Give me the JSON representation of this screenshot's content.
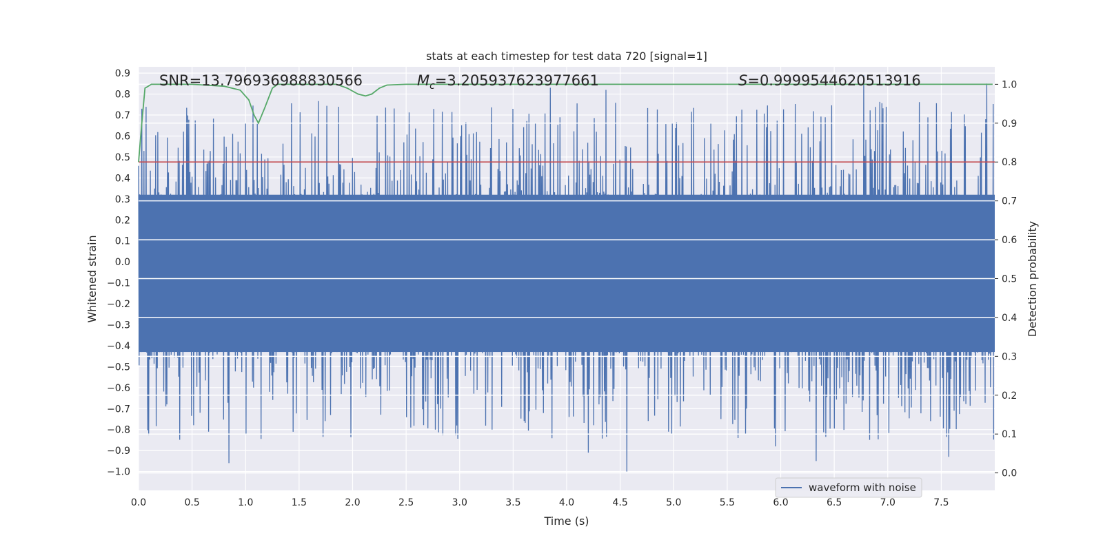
{
  "chart_data": {
    "type": "line",
    "title": "stats at each timestep for test data 720 [signal=1]",
    "xlabel": "Time (s)",
    "ylabel": "Whitened strain",
    "y2label": "Detection probability",
    "xlim": [
      0.0,
      8.0
    ],
    "ylim": [
      -1.09,
      0.93
    ],
    "y2lim": [
      -0.045,
      1.045
    ],
    "x_ticks": [
      0.0,
      0.5,
      1.0,
      1.5,
      2.0,
      2.5,
      3.0,
      3.5,
      4.0,
      4.5,
      5.0,
      5.5,
      6.0,
      6.5,
      7.0,
      7.5
    ],
    "x_tick_labels": [
      "0.0",
      "0.5",
      "1.0",
      "1.5",
      "2.0",
      "2.5",
      "3.0",
      "3.5",
      "4.0",
      "4.5",
      "5.0",
      "5.5",
      "6.0",
      "6.5",
      "7.0",
      "7.5"
    ],
    "y_ticks": [
      0.9,
      0.8,
      0.7,
      0.6,
      0.5,
      0.4,
      0.3,
      0.2,
      0.1,
      0.0,
      -0.1,
      -0.2,
      -0.3,
      -0.4,
      -0.5,
      -0.6,
      -0.7,
      -0.8,
      -0.9,
      -1.0
    ],
    "y_tick_labels": [
      "0.9",
      "0.8",
      "0.7",
      "0.6",
      "0.5",
      "0.4",
      "0.3",
      "0.2",
      "0.1",
      "0.0",
      "−0.1",
      "−0.2",
      "−0.3",
      "−0.4",
      "−0.5",
      "−0.6",
      "−0.7",
      "−0.8",
      "−0.9",
      "−1.0"
    ],
    "y2_ticks": [
      1.0,
      0.9,
      0.8,
      0.7,
      0.6,
      0.5,
      0.4,
      0.3,
      0.2,
      0.1,
      0.0
    ],
    "y2_tick_labels": [
      "1.0",
      "0.9",
      "0.8",
      "0.7",
      "0.6",
      "0.5",
      "0.4",
      "0.3",
      "0.2",
      "0.1",
      "0.0"
    ],
    "grid": true,
    "legend_position": "lower-right",
    "annotations": {
      "snr": "SNR=13.796936988830566",
      "mc_symbol": "M",
      "mc_subscript": "c",
      "mc_value": "=3.205937623977661",
      "s_symbol": "S",
      "s_value": "=0.9999544620513916"
    },
    "series": [
      {
        "name": "waveform with noise",
        "color": "#4c72b0",
        "kind": "noise-waveform",
        "sample_count": 1600,
        "core_band": [
          -0.43,
          0.32
        ],
        "notable_peaks": [
          {
            "x": 0.03,
            "y": 0.73
          },
          {
            "x": 3.85,
            "y": 0.83
          },
          {
            "x": 4.37,
            "y": 0.82
          },
          {
            "x": 6.78,
            "y": 0.89
          },
          {
            "x": 7.93,
            "y": 0.85
          }
        ],
        "notable_troughs": [
          {
            "x": 0.84,
            "y": -0.96
          },
          {
            "x": 4.2,
            "y": -0.91
          },
          {
            "x": 4.56,
            "y": -1.0
          },
          {
            "x": 5.95,
            "y": -0.88
          },
          {
            "x": 6.33,
            "y": -0.95
          },
          {
            "x": 7.57,
            "y": -0.93
          }
        ]
      },
      {
        "name": "",
        "axis": "right",
        "color": "#55a868",
        "x": [
          0.0,
          0.03,
          0.06,
          0.12,
          0.5,
          0.8,
          0.95,
          1.03,
          1.08,
          1.12,
          1.18,
          1.25,
          1.3,
          1.5,
          1.85,
          1.95,
          2.05,
          2.12,
          2.18,
          2.25,
          2.32,
          2.5,
          3.0,
          4.0,
          5.0,
          6.0,
          7.0,
          7.98
        ],
        "y": [
          0.8,
          0.9,
          0.99,
          1.0,
          1.0,
          0.995,
          0.985,
          0.96,
          0.92,
          0.9,
          0.94,
          0.99,
          1.0,
          1.0,
          1.0,
          0.99,
          0.975,
          0.97,
          0.975,
          0.99,
          0.998,
          1.0,
          1.0,
          1.0,
          1.0,
          1.0,
          1.0,
          1.0
        ]
      },
      {
        "name": "",
        "kind": "threshold",
        "axis": "right",
        "color": "#c44e52",
        "y": 0.8
      }
    ]
  }
}
